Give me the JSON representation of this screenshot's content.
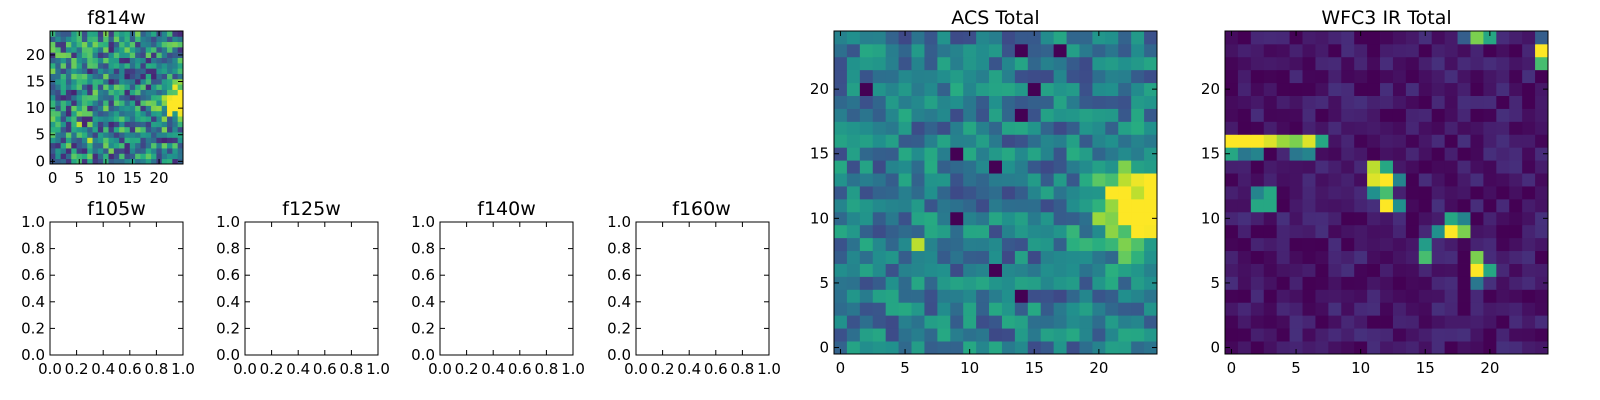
{
  "chart_data": [
    {
      "id": "f814w",
      "type": "heatmap",
      "title": "f814w",
      "colormap": "viridis",
      "grid_size": 25,
      "x_range": [
        -0.5,
        24.5
      ],
      "y_range": [
        -0.5,
        24.5
      ],
      "xticks": [
        "0",
        "5",
        "10",
        "15",
        "20"
      ],
      "yticks": [
        "0",
        "5",
        "10",
        "15",
        "20"
      ],
      "yorigin": "lower",
      "noise_mean": 0.45,
      "noise_spread": 0.35,
      "blobs": [
        {
          "x": 24,
          "y": 11,
          "sigma": 1.8,
          "amp": 0.9
        }
      ],
      "hot_pixels": [
        [
          5,
          7
        ],
        [
          7,
          4
        ]
      ]
    },
    {
      "id": "f105w",
      "type": "empty",
      "title": "f105w",
      "xlim": [
        0,
        1
      ],
      "ylim": [
        0,
        1
      ],
      "xticks": [
        "0.0",
        "0.2",
        "0.4",
        "0.6",
        "0.8",
        "1.0"
      ],
      "yticks": [
        "0.0",
        "0.2",
        "0.4",
        "0.6",
        "0.8",
        "1.0"
      ]
    },
    {
      "id": "f125w",
      "type": "empty",
      "title": "f125w",
      "xlim": [
        0,
        1
      ],
      "ylim": [
        0,
        1
      ],
      "xticks": [
        "0.0",
        "0.2",
        "0.4",
        "0.6",
        "0.8",
        "1.0"
      ],
      "yticks": [
        "0.0",
        "0.2",
        "0.4",
        "0.6",
        "0.8",
        "1.0"
      ]
    },
    {
      "id": "f140w",
      "type": "empty",
      "title": "f140w",
      "xlim": [
        0,
        1
      ],
      "ylim": [
        0,
        1
      ],
      "xticks": [
        "0.0",
        "0.2",
        "0.4",
        "0.6",
        "0.8",
        "1.0"
      ],
      "yticks": [
        "0.0",
        "0.2",
        "0.4",
        "0.6",
        "0.8",
        "1.0"
      ]
    },
    {
      "id": "f160w",
      "type": "empty",
      "title": "f160w",
      "xlim": [
        0,
        1
      ],
      "ylim": [
        0,
        1
      ],
      "xticks": [
        "0.0",
        "0.2",
        "0.4",
        "0.6",
        "0.8",
        "1.0"
      ],
      "yticks": [
        "0.0",
        "0.2",
        "0.4",
        "0.6",
        "0.8",
        "1.0"
      ]
    },
    {
      "id": "acs-total",
      "type": "heatmap",
      "title": "ACS Total",
      "colormap": "viridis",
      "grid_size": 25,
      "x_range": [
        -0.5,
        24.5
      ],
      "y_range": [
        -0.5,
        24.5
      ],
      "xticks": [
        "0",
        "5",
        "10",
        "15",
        "20"
      ],
      "yticks": [
        "0",
        "5",
        "10",
        "15",
        "20"
      ],
      "yorigin": "lower",
      "noise_mean": 0.42,
      "noise_spread": 0.2,
      "blobs": [
        {
          "x": 23,
          "y": 11,
          "sigma": 2.3,
          "amp": 0.75
        }
      ],
      "hot_pixels": [
        [
          6,
          8
        ]
      ],
      "cold_pixels": [
        [
          14,
          23
        ],
        [
          17,
          23
        ],
        [
          2,
          20
        ],
        [
          15,
          20
        ],
        [
          14,
          18
        ],
        [
          9,
          15
        ],
        [
          12,
          14
        ],
        [
          9,
          10
        ],
        [
          12,
          6
        ],
        [
          14,
          4
        ]
      ]
    },
    {
      "id": "wfc3-ir-total",
      "type": "heatmap",
      "title": "WFC3 IR Total",
      "colormap": "viridis",
      "grid_size": 25,
      "x_range": [
        -0.5,
        24.5
      ],
      "y_range": [
        -0.5,
        24.5
      ],
      "xticks": [
        "0",
        "5",
        "10",
        "15",
        "20"
      ],
      "yticks": [
        "0",
        "5",
        "10",
        "15",
        "20"
      ],
      "yorigin": "lower",
      "noise_mean": 0.06,
      "noise_spread": 0.08,
      "blobs": [],
      "hot_pixels": [
        [
          0,
          16,
          1.0
        ],
        [
          1,
          16,
          1.0
        ],
        [
          2,
          16,
          1.0
        ],
        [
          3,
          16,
          0.95
        ],
        [
          4,
          16,
          0.85
        ],
        [
          5,
          16,
          0.8
        ],
        [
          6,
          16,
          0.95
        ],
        [
          7,
          16,
          0.6
        ],
        [
          0,
          15,
          0.6
        ],
        [
          1,
          15,
          0.4
        ],
        [
          2,
          15,
          0.45
        ],
        [
          5,
          15,
          0.4
        ],
        [
          6,
          15,
          0.45
        ],
        [
          11,
          14,
          0.9
        ],
        [
          12,
          14,
          0.6
        ],
        [
          11,
          13,
          0.95
        ],
        [
          12,
          13,
          1.0
        ],
        [
          13,
          13,
          0.45
        ],
        [
          2,
          12,
          0.45
        ],
        [
          3,
          12,
          0.6
        ],
        [
          11,
          12,
          0.5
        ],
        [
          12,
          12,
          0.7
        ],
        [
          2,
          11,
          0.6
        ],
        [
          3,
          11,
          0.6
        ],
        [
          12,
          11,
          1.0
        ],
        [
          13,
          11,
          0.5
        ],
        [
          17,
          10,
          0.6
        ],
        [
          18,
          10,
          0.45
        ],
        [
          16,
          9,
          0.5
        ],
        [
          17,
          9,
          1.0
        ],
        [
          18,
          9,
          0.8
        ],
        [
          15,
          8,
          0.55
        ],
        [
          15,
          7,
          0.7
        ],
        [
          19,
          7,
          0.8
        ],
        [
          19,
          6,
          1.0
        ],
        [
          20,
          6,
          0.6
        ],
        [
          19,
          5,
          0.4
        ],
        [
          24,
          23,
          1.0
        ],
        [
          24,
          22,
          0.7
        ],
        [
          19,
          24,
          0.8
        ],
        [
          20,
          24,
          0.6
        ],
        [
          18,
          24,
          0.3
        ],
        [
          24,
          24,
          0.3
        ]
      ]
    }
  ]
}
